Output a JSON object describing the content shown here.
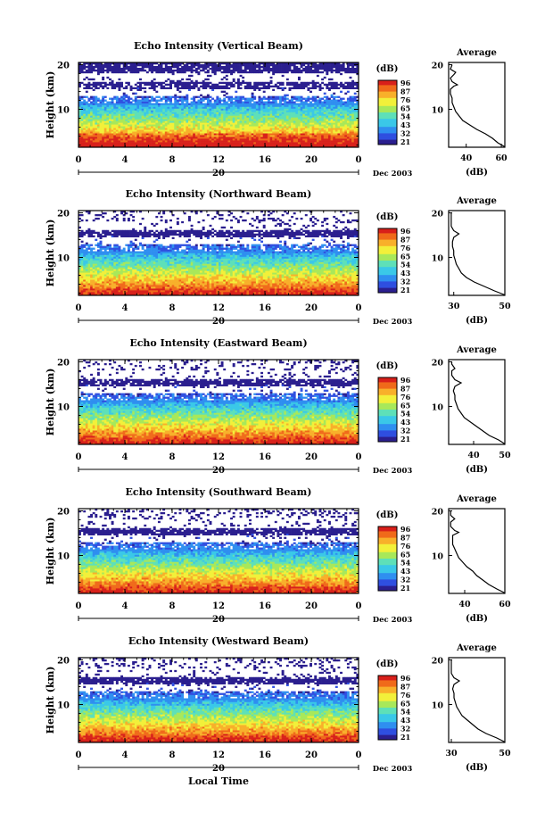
{
  "figure": {
    "xlabel": "Local Time",
    "date_label": "Dec 2003",
    "day_label": "20",
    "colorbar_unit": "(dB)",
    "colorbar_ticks": [
      "96",
      "87",
      "76",
      "65",
      "54",
      "43",
      "32",
      "21"
    ],
    "colormap": [
      "#2b1f8f",
      "#2f4fe0",
      "#2f8ff0",
      "#3ac8e8",
      "#5ee0b8",
      "#a8e85a",
      "#f2f03a",
      "#f8b02a",
      "#f06a1a",
      "#d8201a"
    ]
  },
  "chart_data": [
    {
      "type": "heatmap",
      "title": "Echo Intensity (Vertical Beam)",
      "ylabel": "Height (km)",
      "x_ticks": [
        "0",
        "4",
        "8",
        "12",
        "16",
        "20",
        "0"
      ],
      "y_ticks": [
        "10",
        "20"
      ],
      "xlim": [
        0,
        24
      ],
      "ylim": [
        1.5,
        20.5
      ],
      "profile": {
        "title": "Average",
        "xlabel": "(dB)",
        "x_ticks": [
          "40",
          "60"
        ],
        "xlim": [
          30,
          62
        ],
        "points": [
          [
            62,
            1.6
          ],
          [
            58,
            2.5
          ],
          [
            55,
            3.5
          ],
          [
            51,
            4.5
          ],
          [
            46,
            5.5
          ],
          [
            42,
            6.5
          ],
          [
            38,
            7.5
          ],
          [
            36,
            8.5
          ],
          [
            34,
            9.5
          ],
          [
            33,
            10.5
          ],
          [
            32,
            11.5
          ],
          [
            32,
            12.5
          ],
          [
            31,
            13.5
          ],
          [
            31,
            14.5
          ],
          [
            33,
            15.2
          ],
          [
            35,
            15.5
          ],
          [
            32,
            16.2
          ],
          [
            31,
            17
          ],
          [
            33,
            17.8
          ],
          [
            34,
            18.3
          ],
          [
            31,
            19
          ],
          [
            32,
            20
          ]
        ]
      }
    },
    {
      "type": "heatmap",
      "title": "Echo Intensity (Northward Beam)",
      "ylabel": "Height (km)",
      "x_ticks": [
        "0",
        "4",
        "8",
        "12",
        "16",
        "20",
        "0"
      ],
      "y_ticks": [
        "10",
        "20"
      ],
      "xlim": [
        0,
        24
      ],
      "ylim": [
        1.5,
        20.5
      ],
      "profile": {
        "title": "Average",
        "xlabel": "(dB)",
        "x_ticks": [
          "30",
          "50"
        ],
        "xlim": [
          28,
          50
        ],
        "points": [
          [
            50,
            1.6
          ],
          [
            46,
            2.5
          ],
          [
            42,
            3.5
          ],
          [
            38,
            4.5
          ],
          [
            35,
            5.5
          ],
          [
            33,
            6.5
          ],
          [
            32,
            7.5
          ],
          [
            31,
            8.5
          ],
          [
            30.5,
            9.5
          ],
          [
            30,
            10.5
          ],
          [
            30,
            11.5
          ],
          [
            29.5,
            12.5
          ],
          [
            29.5,
            13.5
          ],
          [
            30,
            14.5
          ],
          [
            32,
            15.3
          ],
          [
            30,
            16
          ],
          [
            29,
            17
          ],
          [
            29,
            18
          ],
          [
            29,
            19
          ],
          [
            29,
            20
          ]
        ]
      }
    },
    {
      "type": "heatmap",
      "title": "Echo Intensity (Eastward Beam)",
      "ylabel": "Height (km)",
      "x_ticks": [
        "0",
        "4",
        "8",
        "12",
        "16",
        "20",
        "0"
      ],
      "y_ticks": [
        "10",
        "20"
      ],
      "xlim": [
        0,
        24
      ],
      "ylim": [
        1.5,
        20.5
      ],
      "profile": {
        "title": "Average",
        "xlabel": "(dB)",
        "x_ticks": [
          "40",
          "50"
        ],
        "xlim": [
          32,
          50
        ],
        "points": [
          [
            50,
            1.6
          ],
          [
            48,
            2.5
          ],
          [
            45,
            3.5
          ],
          [
            43,
            4.5
          ],
          [
            41,
            5.5
          ],
          [
            39,
            6.5
          ],
          [
            37,
            7.5
          ],
          [
            36,
            8.5
          ],
          [
            35,
            9.5
          ],
          [
            34.5,
            10.5
          ],
          [
            34,
            11.5
          ],
          [
            34,
            12.5
          ],
          [
            33.5,
            13.5
          ],
          [
            34,
            14.5
          ],
          [
            36,
            15.3
          ],
          [
            34,
            16
          ],
          [
            33,
            17
          ],
          [
            33,
            18
          ],
          [
            34,
            18.5
          ],
          [
            33,
            19.5
          ],
          [
            33,
            20
          ]
        ]
      }
    },
    {
      "type": "heatmap",
      "title": "Echo Intensity (Southward Beam)",
      "ylabel": "Height (km)",
      "x_ticks": [
        "0",
        "4",
        "8",
        "12",
        "16",
        "20",
        "0"
      ],
      "y_ticks": [
        "10",
        "20"
      ],
      "xlim": [
        0,
        24
      ],
      "ylim": [
        1.5,
        20.5
      ],
      "profile": {
        "title": "Average",
        "xlabel": "(dB)",
        "x_ticks": [
          "40",
          "60"
        ],
        "xlim": [
          32,
          60
        ],
        "points": [
          [
            60,
            1.6
          ],
          [
            56,
            2.5
          ],
          [
            52,
            3.5
          ],
          [
            49,
            4.5
          ],
          [
            46,
            5.5
          ],
          [
            44,
            6.5
          ],
          [
            41,
            7.5
          ],
          [
            39,
            8.5
          ],
          [
            37,
            9.5
          ],
          [
            36,
            10.5
          ],
          [
            35,
            11.5
          ],
          [
            34,
            12.5
          ],
          [
            34,
            13.5
          ],
          [
            34,
            14.5
          ],
          [
            37,
            15.2
          ],
          [
            35,
            15.6
          ],
          [
            33,
            16.5
          ],
          [
            33,
            17.5
          ],
          [
            35,
            18.2
          ],
          [
            33,
            19
          ],
          [
            33,
            20
          ]
        ]
      }
    },
    {
      "type": "heatmap",
      "title": "Echo Intensity (Westward Beam)",
      "ylabel": "Height (km)",
      "x_ticks": [
        "0",
        "4",
        "8",
        "12",
        "16",
        "20",
        "0"
      ],
      "y_ticks": [
        "10",
        "20"
      ],
      "xlim": [
        0,
        24
      ],
      "ylim": [
        1.5,
        20.5
      ],
      "profile": {
        "title": "Average",
        "xlabel": "(dB)",
        "x_ticks": [
          "30",
          "50"
        ],
        "xlim": [
          29,
          50
        ],
        "points": [
          [
            50,
            1.6
          ],
          [
            47,
            2.5
          ],
          [
            43,
            3.5
          ],
          [
            40,
            4.5
          ],
          [
            38,
            5.5
          ],
          [
            36,
            6.5
          ],
          [
            34,
            7.5
          ],
          [
            33,
            8.5
          ],
          [
            32,
            9.5
          ],
          [
            31.5,
            10.5
          ],
          [
            31,
            11.5
          ],
          [
            31,
            12.5
          ],
          [
            30.5,
            13.5
          ],
          [
            31,
            14.5
          ],
          [
            33,
            15.3
          ],
          [
            31,
            16
          ],
          [
            30,
            17
          ],
          [
            30,
            18
          ],
          [
            30,
            19
          ],
          [
            30,
            20
          ]
        ]
      }
    }
  ]
}
